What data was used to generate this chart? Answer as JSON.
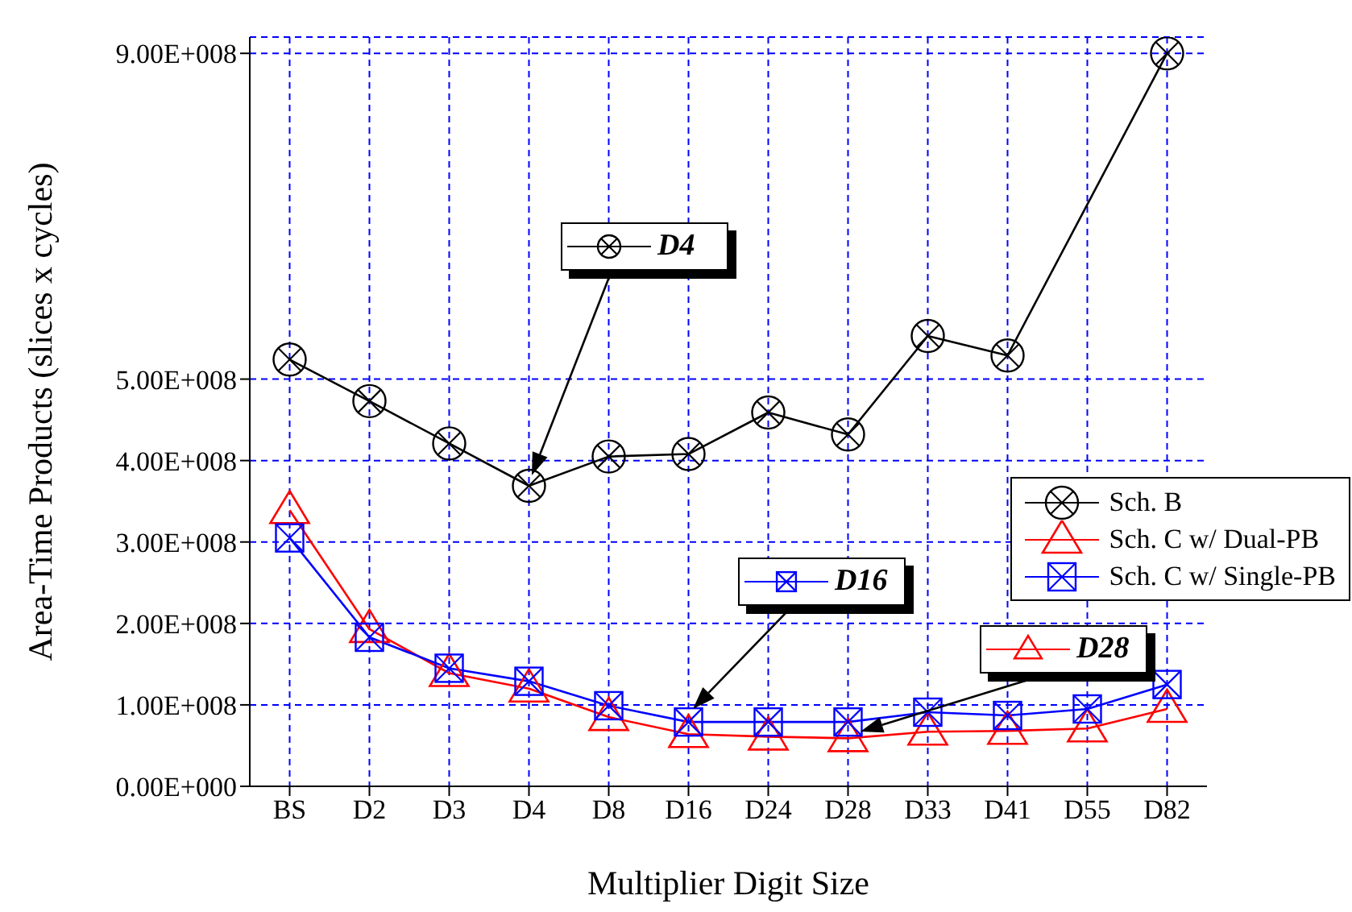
{
  "chart_data": {
    "type": "line",
    "categories": [
      "BS",
      "D2",
      "D3",
      "D4",
      "D8",
      "D16",
      "D24",
      "D28",
      "D33",
      "D41",
      "D55",
      "D82"
    ],
    "xlabel": "Multiplier Digit Size",
    "ylabel": "Area-Time Products (slices x cycles)",
    "ylim": [
      0,
      920000000
    ],
    "yticks": [
      {
        "value": 0,
        "label": "0.00E+000"
      },
      {
        "value": 100000000,
        "label": "1.00E+008"
      },
      {
        "value": 200000000,
        "label": "2.00E+008"
      },
      {
        "value": 300000000,
        "label": "3.00E+008"
      },
      {
        "value": 400000000,
        "label": "4.00E+008"
      },
      {
        "value": 500000000,
        "label": "5.00E+008"
      },
      {
        "value": 900000000,
        "label": "9.00E+008"
      }
    ],
    "grid": true,
    "legend": "right",
    "series": [
      {
        "name": "Sch. B",
        "color": "#000000",
        "marker": "circle",
        "values": [
          524000000,
          473000000,
          421000000,
          369000000,
          405000000,
          408000000,
          459000000,
          432000000,
          553000000,
          529000000,
          null,
          900000000
        ]
      },
      {
        "name": "Sch. C w/ Dual-PB",
        "color": "#ff0000",
        "marker": "triangle",
        "values": [
          339000000,
          193000000,
          139000000,
          120000000,
          85000000,
          64000000,
          61000000,
          59000000,
          67000000,
          68000000,
          71000000,
          95000000
        ]
      },
      {
        "name": "Sch. C w/ Single-PB",
        "color": "#0000ff",
        "marker": "square",
        "values": [
          305000000,
          183000000,
          145000000,
          129000000,
          99000000,
          79000000,
          79000000,
          79000000,
          91000000,
          87000000,
          95000000,
          125000000
        ]
      }
    ],
    "annotations": [
      "D4",
      "D16",
      "D28"
    ]
  }
}
